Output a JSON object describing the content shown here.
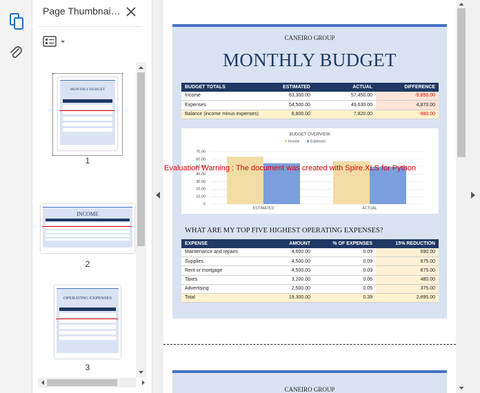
{
  "sidebar": {
    "title": "Page Thumbnai…"
  },
  "thumbnails": [
    {
      "page": "1",
      "title": "MONTHLY BUDGET"
    },
    {
      "page": "2",
      "title": "INCOME"
    },
    {
      "page": "3",
      "title": "OPERATING EXPENSES"
    }
  ],
  "document": {
    "company": "CANEIRO GROUP",
    "title": "MONTHLY BUDGET",
    "budget_table": {
      "headers": [
        "BUDGET TOTALS",
        "ESTIMATED",
        "ACTUAL",
        "DIFFERENCE"
      ],
      "rows": [
        [
          "Income",
          "63,300.00",
          "57,450.00",
          "-5,850.00"
        ],
        [
          "Expenses",
          "54,500.00",
          "49,630.00",
          "4,870.00"
        ],
        [
          "Balance (income minus expenses)",
          "8,800.00",
          "7,820.00",
          "-980.00"
        ]
      ]
    },
    "chart": {
      "type": "bar",
      "title": "BUDGET OVERVIEW",
      "categories": [
        "ESTIMATED",
        "ACTUAL"
      ],
      "series": [
        {
          "name": "Income",
          "color": "#f1dca4",
          "values": [
            63.3,
            57.45
          ]
        },
        {
          "name": "Expenses",
          "color": "#7a9fdc",
          "values": [
            54.5,
            49.63
          ]
        }
      ],
      "ylim": [
        0,
        70
      ],
      "yticks": [
        0,
        {
          "value": 10,
          "label": "10,00"
        },
        {
          "value": 20,
          "label": "20,00"
        },
        {
          "value": 30,
          "label": "30,00"
        },
        {
          "value": 40,
          "label": "40,00"
        },
        {
          "value": 50,
          "label": "50,00"
        },
        {
          "value": 60,
          "label": "60,00"
        },
        {
          "value": 70,
          "label": "70,00"
        }
      ],
      "grid": true
    },
    "watermark": "Evaluation Warning : The document was created with  Spire.XLS for Python",
    "expenses_heading": "WHAT ARE MY TOP FIVE HIGHEST OPERATING EXPENSES?",
    "expenses_table": {
      "headers": [
        "EXPENSE",
        "AMOUNT",
        "% OF EXPENSES",
        "15% REDUCTION"
      ],
      "rows": [
        [
          "Maintenance and repairs",
          "4,600.00",
          "0.09",
          "690.00"
        ],
        [
          "Supplies",
          "4,500.00",
          "0.09",
          "675.00"
        ],
        [
          "Rent or mortgage",
          "4,500.00",
          "0.09",
          "675.00"
        ],
        [
          "Taxes",
          "3,200.00",
          "0.06",
          "480.00"
        ],
        [
          "Advertising",
          "2,500.00",
          "0.05",
          "375.00"
        ],
        [
          "Total",
          "19,300.00",
          "0.39",
          "2,895.00"
        ]
      ]
    }
  },
  "next_page": {
    "company": "CANEIRO GROUP"
  }
}
